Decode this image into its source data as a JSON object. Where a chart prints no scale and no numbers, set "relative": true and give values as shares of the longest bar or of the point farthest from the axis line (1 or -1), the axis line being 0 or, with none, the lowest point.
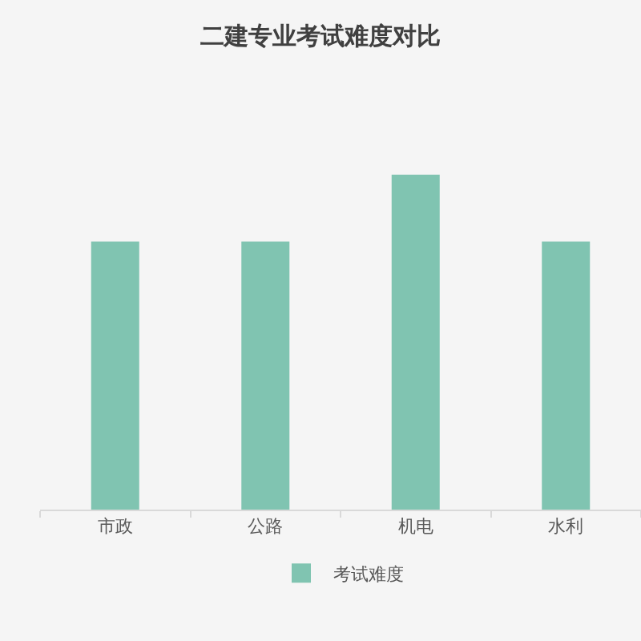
{
  "chart_data": {
    "type": "bar",
    "title": "二建专业考试难度对比",
    "categories": [
      "市政",
      "公路",
      "机电",
      "水利"
    ],
    "series": [
      {
        "name": "考试难度",
        "color": "#80c4b1",
        "values": [
          0.8,
          0.8,
          1,
          0.8
        ]
      }
    ],
    "relative": true,
    "legend": "bottom"
  }
}
